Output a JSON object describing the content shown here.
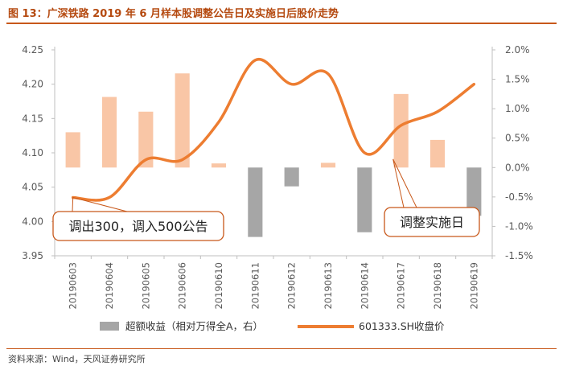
{
  "figure_title": "图 13：广深铁路 2019 年 6 月样本股调整公告日及实施日后股价走势",
  "source": "资料来源：Wind，天风证券研究所",
  "colors": {
    "accent": "#c8581a",
    "bar_positive": "#f9c6a6",
    "bar_negative": "#a6a6a6",
    "line": "#ed7d31",
    "callout_border": "#c8581a",
    "axis": "#595959"
  },
  "chart_data": {
    "type": "bar+line",
    "categories": [
      "20190603",
      "20190604",
      "20190605",
      "20190606",
      "20190610",
      "20190611",
      "20190612",
      "20190613",
      "20190614",
      "20190617",
      "20190618",
      "20190619"
    ],
    "series": [
      {
        "name": "超额收益（相对万得全A，右）",
        "type": "bar",
        "axis": "right",
        "values": [
          0.6,
          1.2,
          0.95,
          1.6,
          0.07,
          -1.18,
          -0.32,
          0.08,
          -1.1,
          1.25,
          0.47,
          -0.82
        ]
      },
      {
        "name": "601333.SH收盘价",
        "type": "line",
        "axis": "left",
        "values": [
          4.035,
          4.035,
          4.09,
          4.09,
          4.145,
          4.235,
          4.2,
          4.215,
          4.1,
          4.14,
          4.16,
          4.2
        ]
      }
    ],
    "left_axis": {
      "min": 3.95,
      "max": 4.25,
      "ticks": [
        "3.95",
        "4.00",
        "4.05",
        "4.10",
        "4.15",
        "4.20",
        "4.25"
      ]
    },
    "right_axis": {
      "min": -1.5,
      "max": 2.0,
      "ticks": [
        "-1.5%",
        "-1.0%",
        "-0.5%",
        "0.0%",
        "0.5%",
        "1.0%",
        "1.5%",
        "2.0%"
      ]
    },
    "annotations": [
      {
        "text": "调出300，调入500公告",
        "category": "20190603"
      },
      {
        "text": "调整实施日",
        "category": "20190617"
      }
    ],
    "legend": [
      "超额收益（相对万得全A，右）",
      "601333.SH收盘价"
    ],
    "legend_position": "bottom"
  }
}
